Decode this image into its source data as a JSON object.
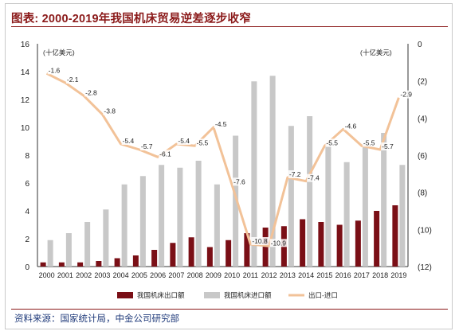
{
  "title": "图表: 2000-2019年我国机床贸易逆差逐步收窄",
  "source": "资料来源：国家统计局，中金公司研究部",
  "chart_data": {
    "type": "bar",
    "categories": [
      "2000",
      "2001",
      "2002",
      "2003",
      "2004",
      "2005",
      "2006",
      "2007",
      "2008",
      "2009",
      "2010",
      "2011",
      "2012",
      "2013",
      "2014",
      "2015",
      "2016",
      "2017",
      "2018",
      "2019"
    ],
    "left_axis": {
      "unit_label": "(十亿美元)",
      "ylim": [
        0,
        16
      ],
      "ticks": [
        0,
        2,
        4,
        6,
        8,
        10,
        12,
        14,
        16
      ]
    },
    "right_axis": {
      "unit_label": "(十亿美元)",
      "ylim": [
        -12,
        0
      ],
      "ticks": [
        0,
        -2,
        -4,
        -6,
        -8,
        -10,
        -12
      ],
      "tick_labels": [
        "0",
        "(2)",
        "(4)",
        "(6)",
        "(8)",
        "(10)",
        "(12)"
      ]
    },
    "series": [
      {
        "name": "我国机床出口额",
        "type": "bar",
        "axis": "left",
        "color": "#7a0f16",
        "values": [
          0.3,
          0.3,
          0.3,
          0.4,
          0.6,
          0.8,
          1.2,
          1.7,
          2.1,
          1.4,
          1.9,
          2.4,
          2.8,
          2.9,
          3.4,
          3.2,
          3.0,
          3.3,
          4.0,
          4.4
        ]
      },
      {
        "name": "我国机床进口额",
        "type": "bar",
        "axis": "left",
        "color": "#c8c8c8",
        "values": [
          1.9,
          2.4,
          3.2,
          4.1,
          5.9,
          6.5,
          7.3,
          7.1,
          7.6,
          5.9,
          9.4,
          13.3,
          13.7,
          10.1,
          10.8,
          8.6,
          7.5,
          8.8,
          9.6,
          7.3
        ]
      },
      {
        "name": "出口-进口",
        "type": "line",
        "axis": "right",
        "color": "#f2c298",
        "values": [
          -1.6,
          -2.1,
          -2.8,
          -3.8,
          -5.4,
          -5.7,
          -6.1,
          -5.4,
          -5.5,
          -4.5,
          -7.6,
          -10.8,
          -10.9,
          -7.2,
          -7.4,
          -5.5,
          -4.6,
          -5.5,
          -5.7,
          -2.9
        ],
        "labels": [
          "-1.6",
          "-2.1",
          "-2.8",
          "-3.8",
          "-5.4",
          "-5.7",
          "-6.1",
          "-5.4",
          "-5.5",
          "-4.5",
          "-7.6",
          "-10.8",
          "-10.9",
          "-7.2",
          "-7.4",
          "-5.5",
          "-4.6",
          "-5.5",
          "-5.7",
          "-2.9"
        ]
      }
    ],
    "legend": {
      "placement": "bottom"
    },
    "grid": false
  }
}
